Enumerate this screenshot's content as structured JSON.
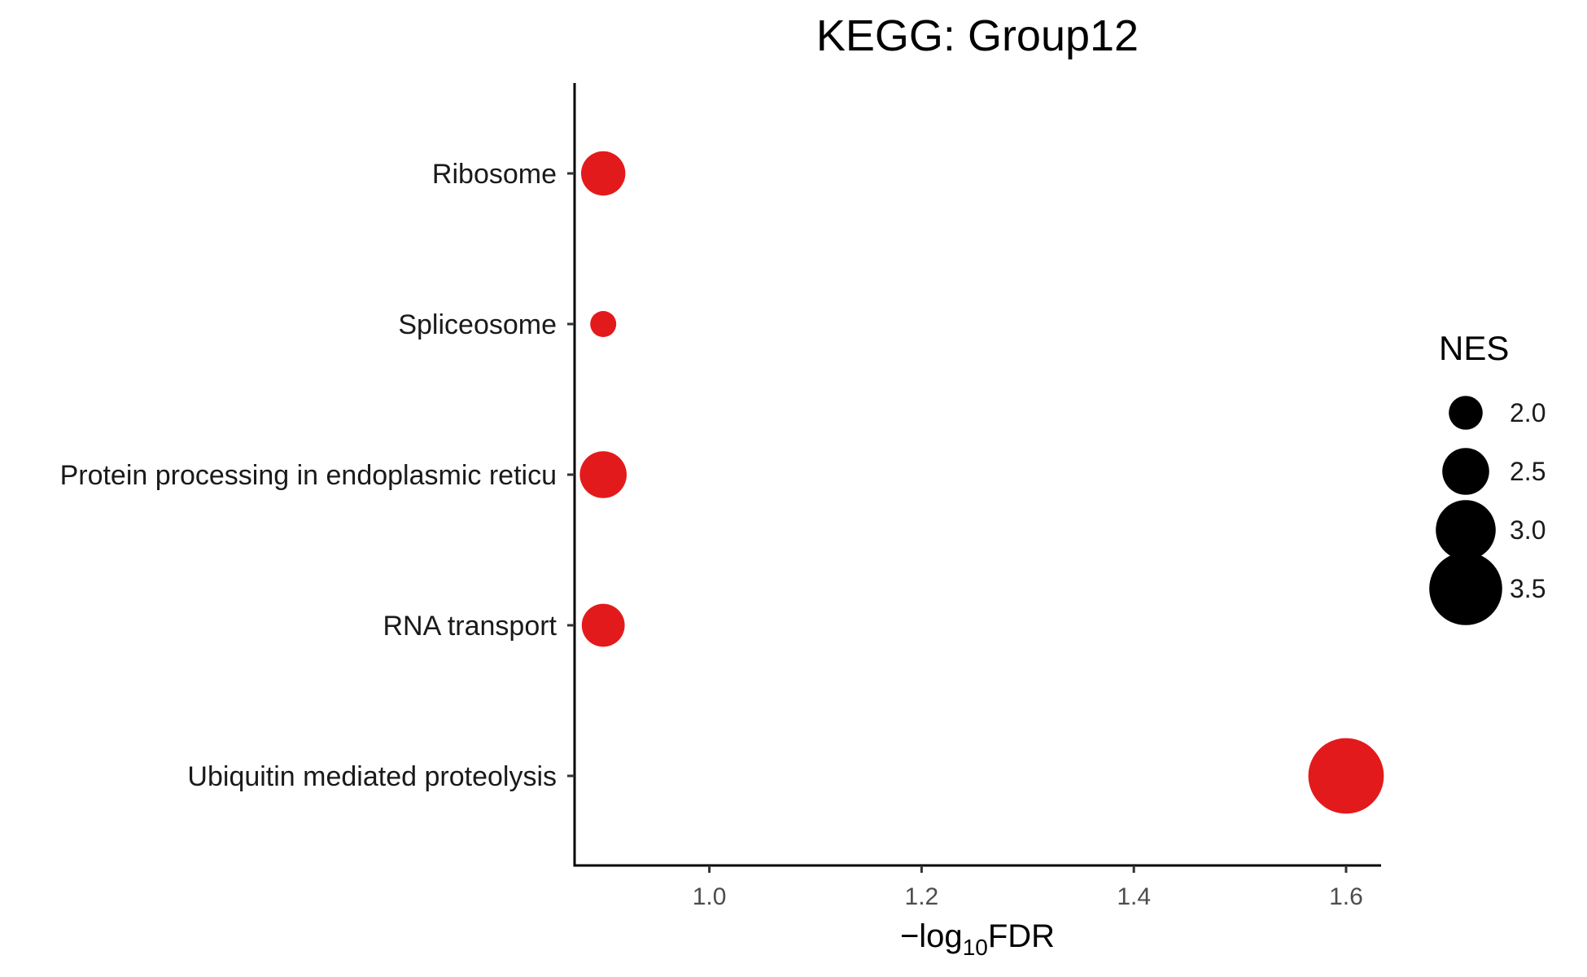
{
  "chart_data": {
    "type": "scatter",
    "title": "KEGG: Group12",
    "xlabel": {
      "prefix": "−log",
      "subscript": "10",
      "suffix": "FDR"
    },
    "ylabel": "",
    "categories": [
      "Ribosome",
      "Spliceosome",
      "Protein processing in endoplasmic reticu",
      "RNA transport",
      "Ubiquitin mediated proteolysis"
    ],
    "points": [
      {
        "category": "Ribosome",
        "x": 0.9,
        "nes": 2.4
      },
      {
        "category": "Spliceosome",
        "x": 0.9,
        "nes": 1.7
      },
      {
        "category": "Protein processing in endoplasmic reticu",
        "x": 0.9,
        "nes": 2.5
      },
      {
        "category": "RNA transport",
        "x": 0.9,
        "nes": 2.35
      },
      {
        "category": "Ubiquitin mediated proteolysis",
        "x": 1.6,
        "nes": 3.6
      }
    ],
    "xlim": [
      0.873,
      1.633
    ],
    "xticks": [
      1.0,
      1.2,
      1.4,
      1.6
    ],
    "xtick_labels": [
      "1.0",
      "1.2",
      "1.4",
      "1.6"
    ],
    "size_legend": {
      "title": "NES",
      "values": [
        2.0,
        2.5,
        3.0,
        3.5
      ],
      "labels": [
        "2.0",
        "2.5",
        "3.0",
        "3.5"
      ]
    },
    "point_color": "#e31a1c",
    "legend_color": "#000000",
    "grid": false,
    "legend_position": "right"
  }
}
